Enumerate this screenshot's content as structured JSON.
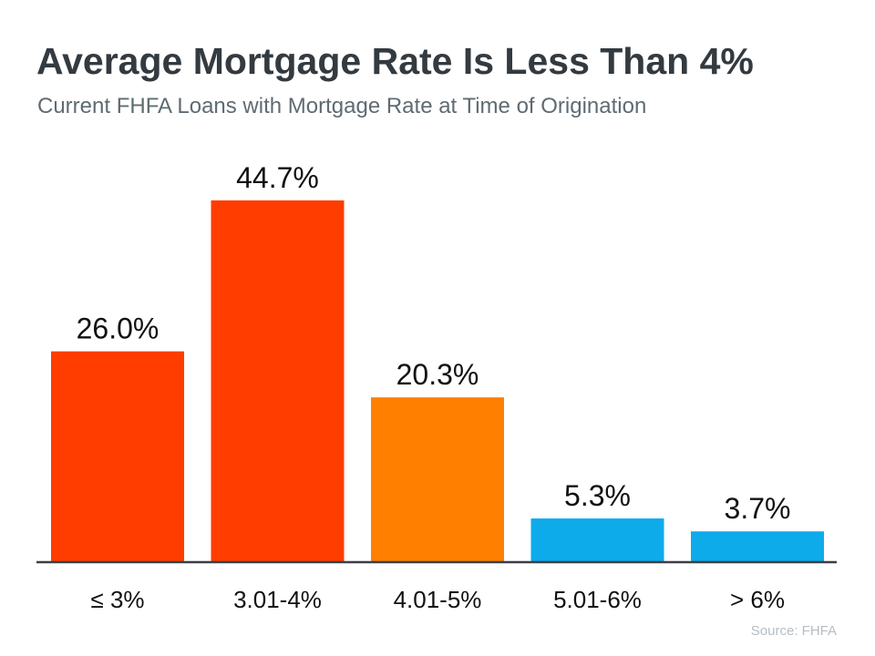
{
  "chart_data": {
    "type": "bar",
    "title": "Average Mortgage Rate Is Less Than 4%",
    "subtitle": "Current FHFA Loans with Mortgage Rate at Time of Origination",
    "categories": [
      "≤ 3%",
      "3.01-4%",
      "4.01-5%",
      "5.01-6%",
      "> 6%"
    ],
    "values": [
      26.0,
      44.7,
      20.3,
      5.3,
      3.7
    ],
    "data_labels": [
      "26.0%",
      "44.7%",
      "20.3%",
      "5.3%",
      "3.7%"
    ],
    "colors": [
      "#ff3d00",
      "#ff3d00",
      "#ff8000",
      "#0eabeb",
      "#0eabeb"
    ],
    "axis_color": "#3a3f44",
    "ylim": [
      0,
      50
    ],
    "grid": false,
    "xlabel": "",
    "ylabel": "",
    "source": "Source: FHFA"
  }
}
